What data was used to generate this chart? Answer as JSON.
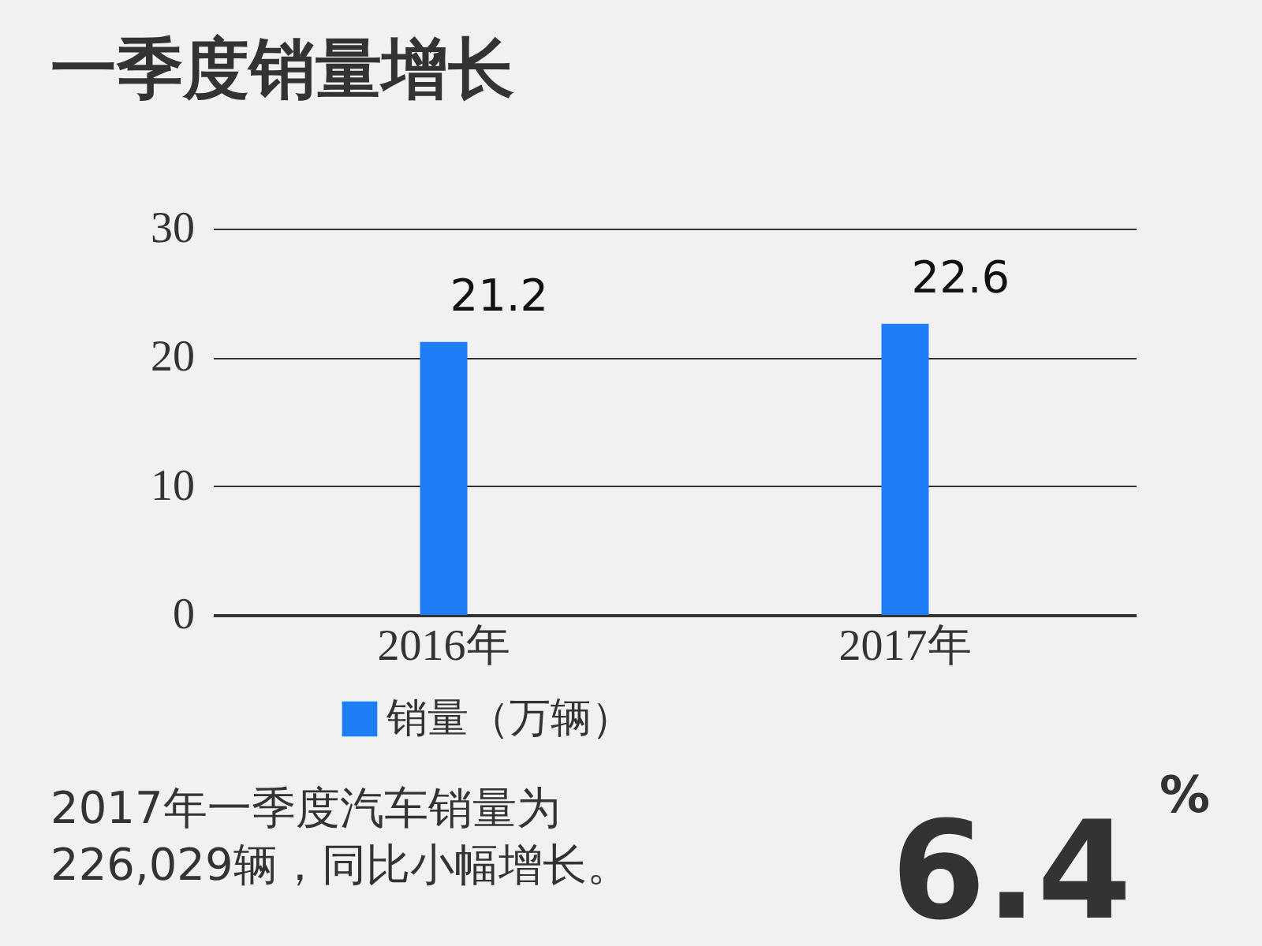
{
  "chart_data": {
    "type": "bar",
    "title": "一季度销量增长",
    "categories": [
      "2016年",
      "2017年"
    ],
    "series": [
      {
        "name": "销量（万辆）",
        "color": "#1f7df5",
        "values": [
          21.2,
          22.6
        ]
      }
    ],
    "ylim": [
      0,
      30
    ],
    "yticks": [
      0,
      10,
      20,
      30
    ],
    "grid": "y",
    "legend": "bottom",
    "data_labels": true,
    "annotations": [
      "2017年一季度汽车销量为\n226,029辆，同比小幅增长。",
      "6.4",
      "%"
    ]
  }
}
